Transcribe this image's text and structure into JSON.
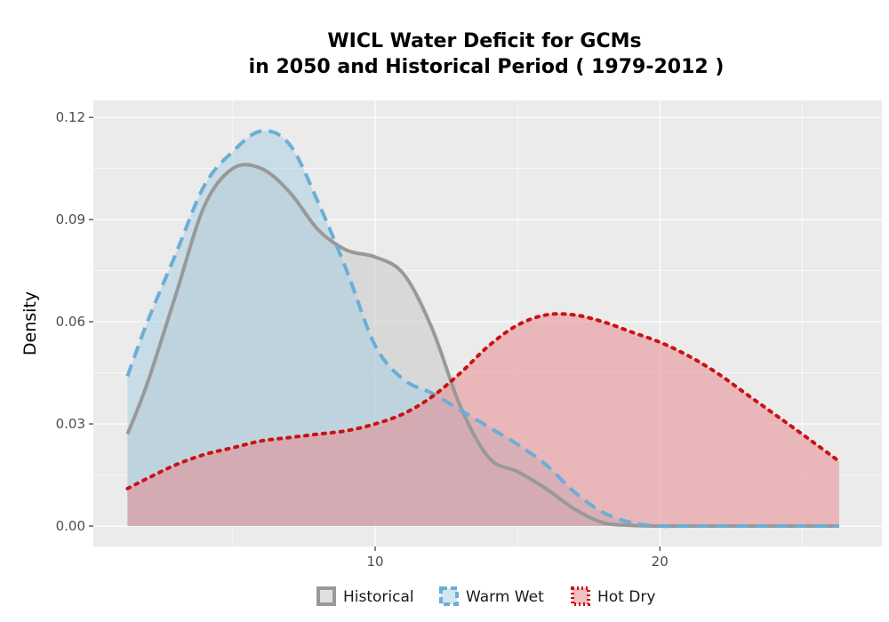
{
  "chart_data": {
    "type": "area",
    "title_line1": "WICL  Water Deficit for GCMs",
    "title_line2": "in 2050 and Historical Period ( 1979-2012 )",
    "xlabel": "",
    "ylabel": "Density",
    "xlim": [
      0.1,
      27.8
    ],
    "ylim": [
      -0.006,
      0.125
    ],
    "x_ticks": [
      10,
      20
    ],
    "x_tick_labels": [
      "10",
      "20"
    ],
    "y_ticks": [
      0.0,
      0.03,
      0.06,
      0.09,
      0.12
    ],
    "y_tick_labels": [
      "0.00",
      "0.03",
      "0.06",
      "0.09",
      "0.12"
    ],
    "grid": true,
    "legend_position": "bottom",
    "series": [
      {
        "name": "Historical",
        "fill": "#cccccc",
        "fill_opacity": 0.6,
        "line_color": "#999999",
        "line_style": "solid",
        "x": [
          1.3,
          2.0,
          3.0,
          4.0,
          5.0,
          6.0,
          7.0,
          8.0,
          9.0,
          10.0,
          11.0,
          12.0,
          13.0,
          14.0,
          15.0,
          16.0,
          17.0,
          18.0,
          19.0,
          20.0,
          21.0,
          22.0,
          23.0,
          24.0,
          25.0,
          26.3
        ],
        "y": [
          0.027,
          0.042,
          0.068,
          0.094,
          0.105,
          0.105,
          0.098,
          0.087,
          0.081,
          0.079,
          0.074,
          0.058,
          0.035,
          0.02,
          0.016,
          0.011,
          0.005,
          0.001,
          0.0002,
          0.0,
          0.0,
          0.0,
          0.0,
          0.0,
          0.0,
          0.0
        ]
      },
      {
        "name": "Warm Wet",
        "fill": "#a6cee3",
        "fill_opacity": 0.5,
        "line_color": "#6baed6",
        "line_style": "dashed",
        "x": [
          1.3,
          2.0,
          3.0,
          4.0,
          5.0,
          6.0,
          7.0,
          8.0,
          9.0,
          10.0,
          11.0,
          12.0,
          13.0,
          14.0,
          15.0,
          16.0,
          17.0,
          18.0,
          19.0,
          20.0,
          21.0,
          22.0,
          23.0,
          24.0,
          25.0,
          26.3
        ],
        "y": [
          0.044,
          0.06,
          0.08,
          0.1,
          0.11,
          0.116,
          0.112,
          0.095,
          0.075,
          0.053,
          0.043,
          0.039,
          0.034,
          0.029,
          0.024,
          0.018,
          0.01,
          0.004,
          0.001,
          0.0,
          0.0,
          0.0,
          0.0,
          0.0,
          0.0,
          0.0
        ]
      },
      {
        "name": "Hot Dry",
        "fill": "#e78a90",
        "fill_opacity": 0.55,
        "line_color": "#cc1111",
        "line_style": "dotted",
        "x": [
          1.3,
          2.0,
          3.0,
          4.0,
          5.0,
          6.0,
          7.0,
          8.0,
          9.0,
          10.0,
          11.0,
          12.0,
          13.0,
          14.0,
          15.0,
          16.0,
          17.0,
          18.0,
          19.0,
          20.0,
          21.0,
          22.0,
          23.0,
          24.0,
          25.0,
          26.3
        ],
        "y": [
          0.011,
          0.014,
          0.018,
          0.021,
          0.023,
          0.025,
          0.026,
          0.027,
          0.028,
          0.03,
          0.033,
          0.038,
          0.045,
          0.053,
          0.059,
          0.062,
          0.062,
          0.06,
          0.057,
          0.054,
          0.05,
          0.045,
          0.039,
          0.033,
          0.027,
          0.019
        ]
      }
    ]
  }
}
